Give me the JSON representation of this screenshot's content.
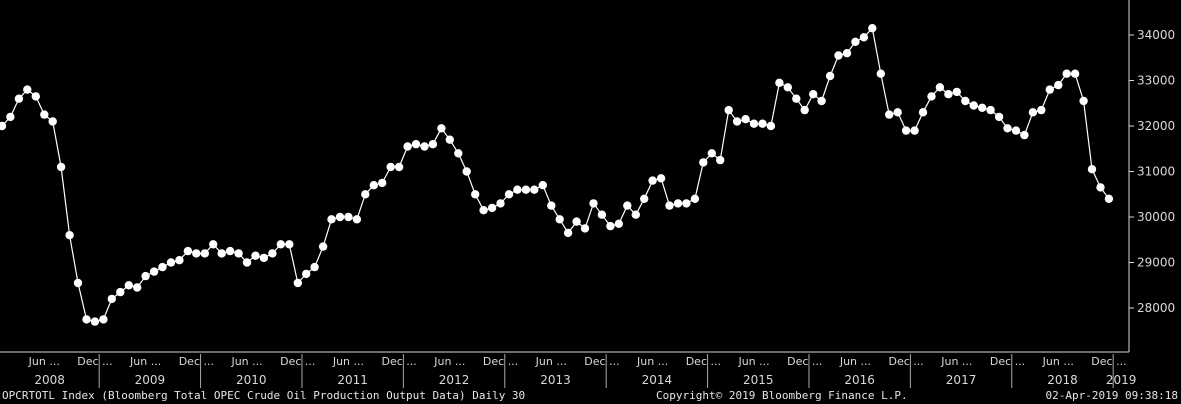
{
  "chart_data": {
    "type": "line",
    "title": "",
    "xlabel": "",
    "ylabel": "",
    "ylim": [
      27000,
      35000
    ],
    "y_ticks": [
      28000,
      29000,
      30000,
      31000,
      32000,
      33000,
      34000
    ],
    "y_tick_labels": [
      "28000",
      "29000",
      "30000",
      "31000",
      "32000",
      "33000",
      "34000"
    ],
    "x_month_labels": [
      "Jun ...",
      "Dec ...",
      "Jun ...",
      "Dec ...",
      "Jun ...",
      "Dec ...",
      "Jun ...",
      "Dec ...",
      "Jun ...",
      "Dec ...",
      "Jun ...",
      "Dec ...",
      "Jun ...",
      "Dec ...",
      "Jun ...",
      "Dec ...",
      "Jun ...",
      "Dec ...",
      "Jun ...",
      "Dec ...",
      "Jun ...",
      "Dec ..."
    ],
    "x_year_labels": [
      "2008",
      "2009",
      "2010",
      "2011",
      "2012",
      "2013",
      "2014",
      "2015",
      "2016",
      "2017",
      "2018",
      "2019"
    ],
    "grid": false,
    "line_color": "#ffffff",
    "marker_color": "#ffffff",
    "series": [
      {
        "values": [
          32000,
          32200,
          32600,
          32800,
          32650,
          32250,
          32100,
          31100,
          29600,
          28550,
          27750,
          27700,
          27750,
          28200,
          28350,
          28500,
          28450,
          28700,
          28800,
          28900,
          29000,
          29050,
          29250,
          29200,
          29200,
          29400,
          29200,
          29250,
          29200,
          29000,
          29150,
          29100,
          29200,
          29400,
          29400,
          28550,
          28750,
          28900,
          29350,
          29950,
          30000,
          30000,
          29950,
          30500,
          30700,
          30750,
          31100,
          31100,
          31550,
          31600,
          31550,
          31600,
          31950,
          31700,
          31400,
          31000,
          30500,
          30150,
          30200,
          30300,
          30500,
          30600,
          30600,
          30600,
          30700,
          30250,
          29950,
          29650,
          29900,
          29750,
          30300,
          30050,
          29800,
          29850,
          30250,
          30050,
          30400,
          30800,
          30850,
          30250,
          30300,
          30300,
          30400,
          31200,
          31400,
          31250,
          32350,
          32100,
          32150,
          32050,
          32050,
          32000,
          32950,
          32850,
          32600,
          32350,
          32700,
          32550,
          33100,
          33550,
          33600,
          33850,
          33950,
          34150,
          33150,
          32250,
          32300,
          31900,
          31900,
          32300,
          32650,
          32850,
          32700,
          32750,
          32550,
          32450,
          32400,
          32350,
          32200,
          31950,
          31900,
          31800,
          32300,
          32350,
          32800,
          32900,
          33150,
          33150,
          32550,
          31050,
          30650,
          30400
        ]
      }
    ],
    "start_date": "2008-01",
    "interval_months": 1
  },
  "footer": {
    "left": "OPCRTOTL Index (Bloomberg Total OPEC Crude Oil Production Output Data)  Daily 30",
    "center": "Copyright© 2019 Bloomberg Finance L.P.",
    "right": "02-Apr-2019 09:38:18"
  }
}
